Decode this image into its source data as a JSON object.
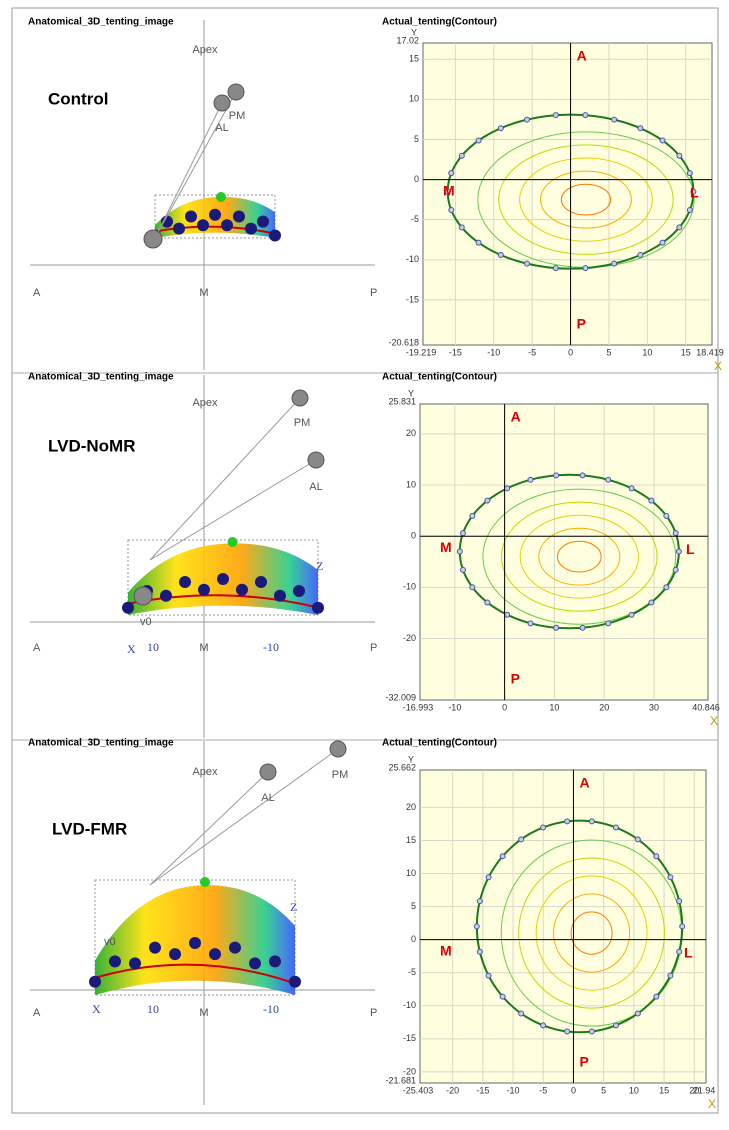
{
  "panels": [
    {
      "left": {
        "title": "Anatomical_3D_tenting_image",
        "group": "Control",
        "apex": "Apex",
        "pm": "PM",
        "al": "AL",
        "axis_a": "A",
        "axis_m": "M",
        "axis_p": "P"
      },
      "right": {
        "title": "Actual_tenting(Contour)",
        "x_label": "X",
        "y_label": "Y",
        "xlim": [
          -19.219,
          18.419
        ],
        "ylim": [
          -20.618,
          17.02
        ],
        "xticks": [
          -15,
          -10,
          -5,
          0,
          5,
          10,
          15
        ],
        "yticks": [
          -15,
          -10,
          -5,
          0,
          5,
          10,
          15
        ],
        "anterior": "A",
        "posterior": "P",
        "medial": "M",
        "lateral": "L"
      }
    },
    {
      "left": {
        "title": "Anatomical_3D_tenting_image",
        "group": "LVD-NoMR",
        "apex": "Apex",
        "pm": "PM",
        "al": "AL",
        "axis_a": "A",
        "axis_m": "M",
        "axis_p": "P",
        "x": "X",
        "ten": "10",
        "minus_ten": "-10",
        "z": "Z",
        "v0": "v0"
      },
      "right": {
        "title": "Actual_tenting(Contour)",
        "x_label": "X",
        "y_label": "Y",
        "xlim": [
          -16.993,
          40.846
        ],
        "ylim": [
          -32.009,
          25.831
        ],
        "xticks": [
          -10,
          0,
          10,
          20,
          30
        ],
        "yticks": [
          -20,
          -10,
          0,
          10,
          20
        ],
        "anterior": "A",
        "posterior": "P",
        "medial": "M",
        "lateral": "L"
      }
    },
    {
      "left": {
        "title": "Anatomical_3D_tenting_image",
        "group": "LVD-FMR",
        "apex": "Apex",
        "pm": "PM",
        "al": "AL",
        "axis_a": "A",
        "axis_m": "M",
        "axis_p": "P",
        "x": "X",
        "ten": "10",
        "minus_ten": "-10",
        "z": "Z",
        "v0": "v0"
      },
      "right": {
        "title": "Actual_tenting(Contour)",
        "x_label": "X",
        "y_label": "Y",
        "xlim": [
          -25.403,
          21.94
        ],
        "ylim": [
          -21.681,
          25.662
        ],
        "xticks": [
          -20,
          -15,
          -10,
          -5,
          0,
          5,
          10,
          15,
          20
        ],
        "yticks": [
          -20,
          -15,
          -10,
          -5,
          0,
          5,
          10,
          15,
          20
        ],
        "anterior": "A",
        "posterior": "P",
        "medial": "M",
        "lateral": "L"
      }
    }
  ]
}
